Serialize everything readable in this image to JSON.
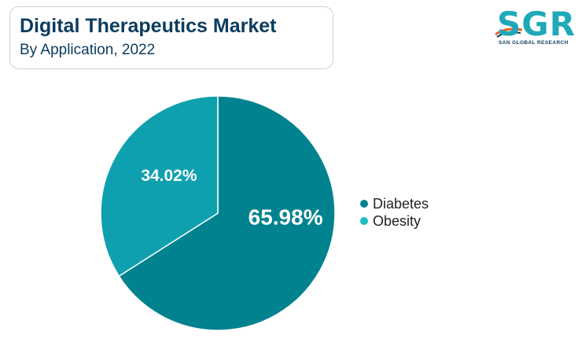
{
  "header": {
    "title": "Digital Therapeutics Market",
    "subtitle": "By Application, 2022"
  },
  "logo": {
    "text": "SGR",
    "tagline": "SAN GLOBAL RESEARCH",
    "colors": {
      "primary": "#1fa9b8",
      "accent": "#e8622c",
      "dark": "#0b3c5d"
    }
  },
  "chart_data": {
    "type": "pie",
    "title": "Digital Therapeutics Market",
    "subtitle": "By Application, 2022",
    "slices": [
      {
        "label": "Diabetes",
        "value": 65.98,
        "value_label": "65.98%",
        "color": "#00838f"
      },
      {
        "label": "Obesity",
        "value": 34.02,
        "value_label": "34.02%",
        "color": "#0fa0b0"
      }
    ],
    "start_angle_deg": 0,
    "direction": "clockwise",
    "legend_position": "right"
  },
  "legend": {
    "items": [
      {
        "label": "Diabetes",
        "color": "#00838f"
      },
      {
        "label": "Obesity",
        "color": "#1cbfbf"
      }
    ]
  }
}
